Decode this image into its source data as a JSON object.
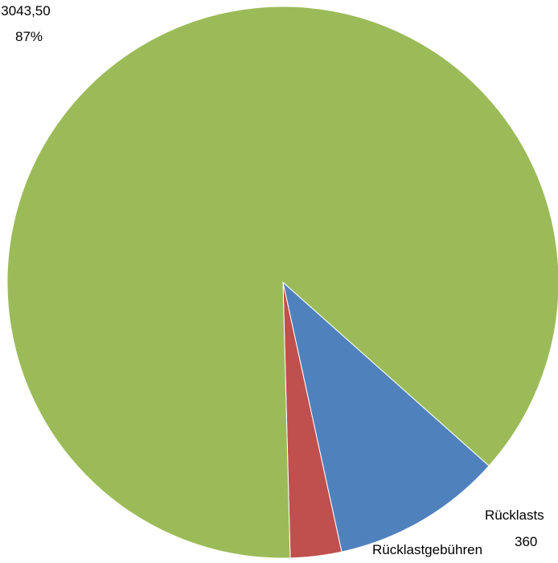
{
  "chart_data": {
    "type": "pie",
    "title": "",
    "legend": "none",
    "slices": [
      {
        "name": "Rücklastgebühren",
        "name_shown": "Rücklastgebühren",
        "value_label": "",
        "percent_label": "",
        "percent": 3,
        "color": "#C0504D"
      },
      {
        "name": "",
        "name_shown": "Rücklasts",
        "value_label": "360",
        "percent_label": "",
        "percent": 10,
        "color": "#4F81BD"
      },
      {
        "name": "",
        "name_shown": "",
        "value_label": "3043,50",
        "percent_label": "87%",
        "percent": 87,
        "color": "#9BBB59"
      }
    ]
  }
}
